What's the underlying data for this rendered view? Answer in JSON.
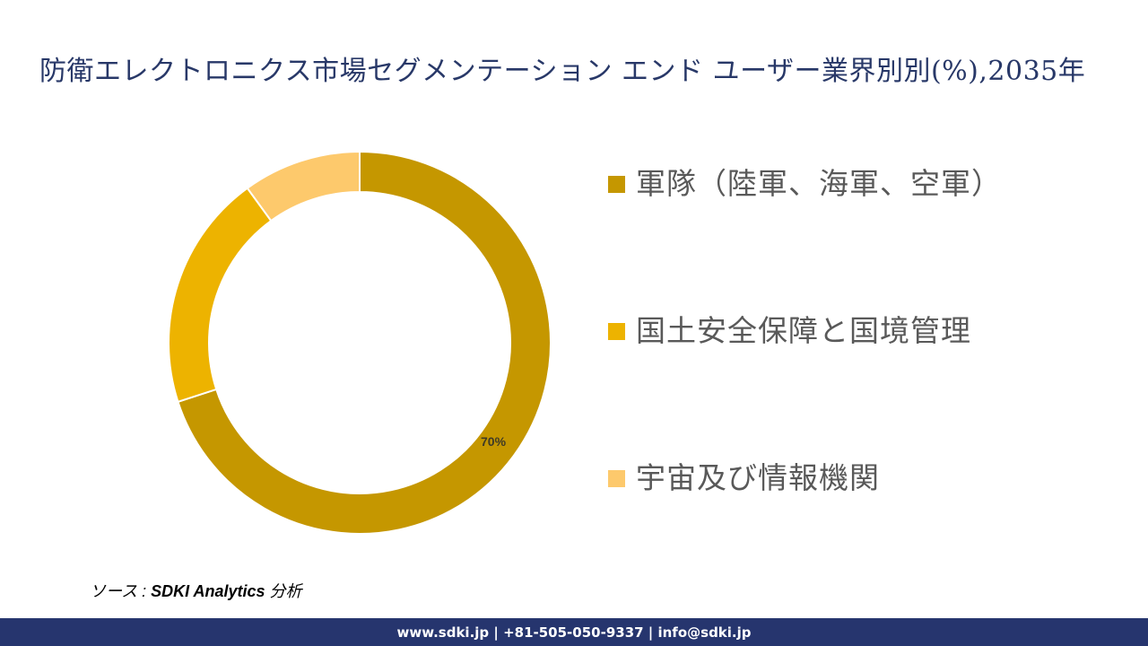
{
  "header": {
    "title": "防衛エレクトロニクス市場セグメンテーション エンド ユーザー業界別別(%),2035年"
  },
  "legend": {
    "items": [
      {
        "label": "軍隊（陸軍、海軍、空軍）",
        "color": "#C59700"
      },
      {
        "label": "国土安全保障と国境管理",
        "color": "#EDB300"
      },
      {
        "label": "宇宙及び情報機関",
        "color": "#FDC96C"
      }
    ]
  },
  "labels": {
    "military": "70%"
  },
  "source": {
    "prefix": "ソース : ",
    "brand": "SDKI Analytics",
    "suffix": " 分析"
  },
  "footer": {
    "contact": "www.sdki.jp | +81-505-050-9337 | info@sdki.jp"
  },
  "colors": {
    "title": "#283868",
    "footer_bg": "#26356E",
    "segment_military": "#C59700",
    "segment_homeland": "#EDB300",
    "segment_space": "#FDC96C"
  },
  "chart_data": {
    "type": "pie",
    "subtype": "donut",
    "title": "防衛エレクトロニクス市場セグメンテーション エンド ユーザー業界別別(%),2035年",
    "categories": [
      "軍隊（陸軍、海軍、空軍）",
      "国土安全保障と国境管理",
      "宇宙及び情報機関"
    ],
    "values": [
      70,
      20,
      10
    ],
    "unit": "%",
    "colors": [
      "#C59700",
      "#EDB300",
      "#FDC96C"
    ],
    "data_labels": {
      "軍隊（陸軍、海軍、空軍）": "70%"
    },
    "start_angle": "12 o'clock, clockwise",
    "legend_position": "right"
  }
}
